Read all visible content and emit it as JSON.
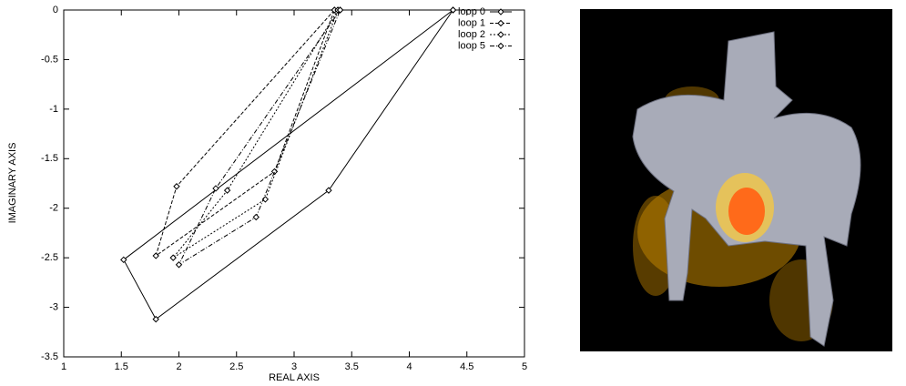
{
  "chart_data": {
    "type": "line",
    "xlabel": "REAL AXIS",
    "ylabel": "IMAGINARY AXIS",
    "xlim": [
      1,
      5
    ],
    "ylim": [
      -3.5,
      0
    ],
    "xticks": [
      1,
      1.5,
      2,
      2.5,
      3,
      3.5,
      4,
      4.5,
      5
    ],
    "yticks": [
      0,
      -0.5,
      -1,
      -1.5,
      -2,
      -2.5,
      -3,
      -3.5
    ],
    "legend": "top right",
    "series": [
      {
        "name": "loop 0",
        "color": "#000000",
        "dash": "none",
        "x": [
          4.38,
          3.3,
          1.8,
          1.52,
          4.38
        ],
        "values": [
          0,
          -1.82,
          -3.12,
          -2.52,
          0
        ]
      },
      {
        "name": "loop 1",
        "color": "#000000",
        "dash": "4,2",
        "x": [
          3.35,
          1.98,
          1.8,
          2.83,
          3.35
        ],
        "values": [
          0,
          -1.78,
          -2.48,
          -1.63,
          0
        ]
      },
      {
        "name": "loop 2",
        "color": "#000000",
        "dash": "2,2",
        "x": [
          3.38,
          2.42,
          1.95,
          2.75,
          3.38
        ],
        "values": [
          0,
          -1.82,
          -2.5,
          -1.91,
          0
        ]
      },
      {
        "name": "loop 5",
        "color": "#000000",
        "dash": "5,2,1,2",
        "x": [
          3.4,
          2.32,
          2.0,
          2.67,
          3.4
        ],
        "values": [
          0,
          -1.8,
          -2.57,
          -2.09,
          0
        ]
      }
    ]
  }
}
